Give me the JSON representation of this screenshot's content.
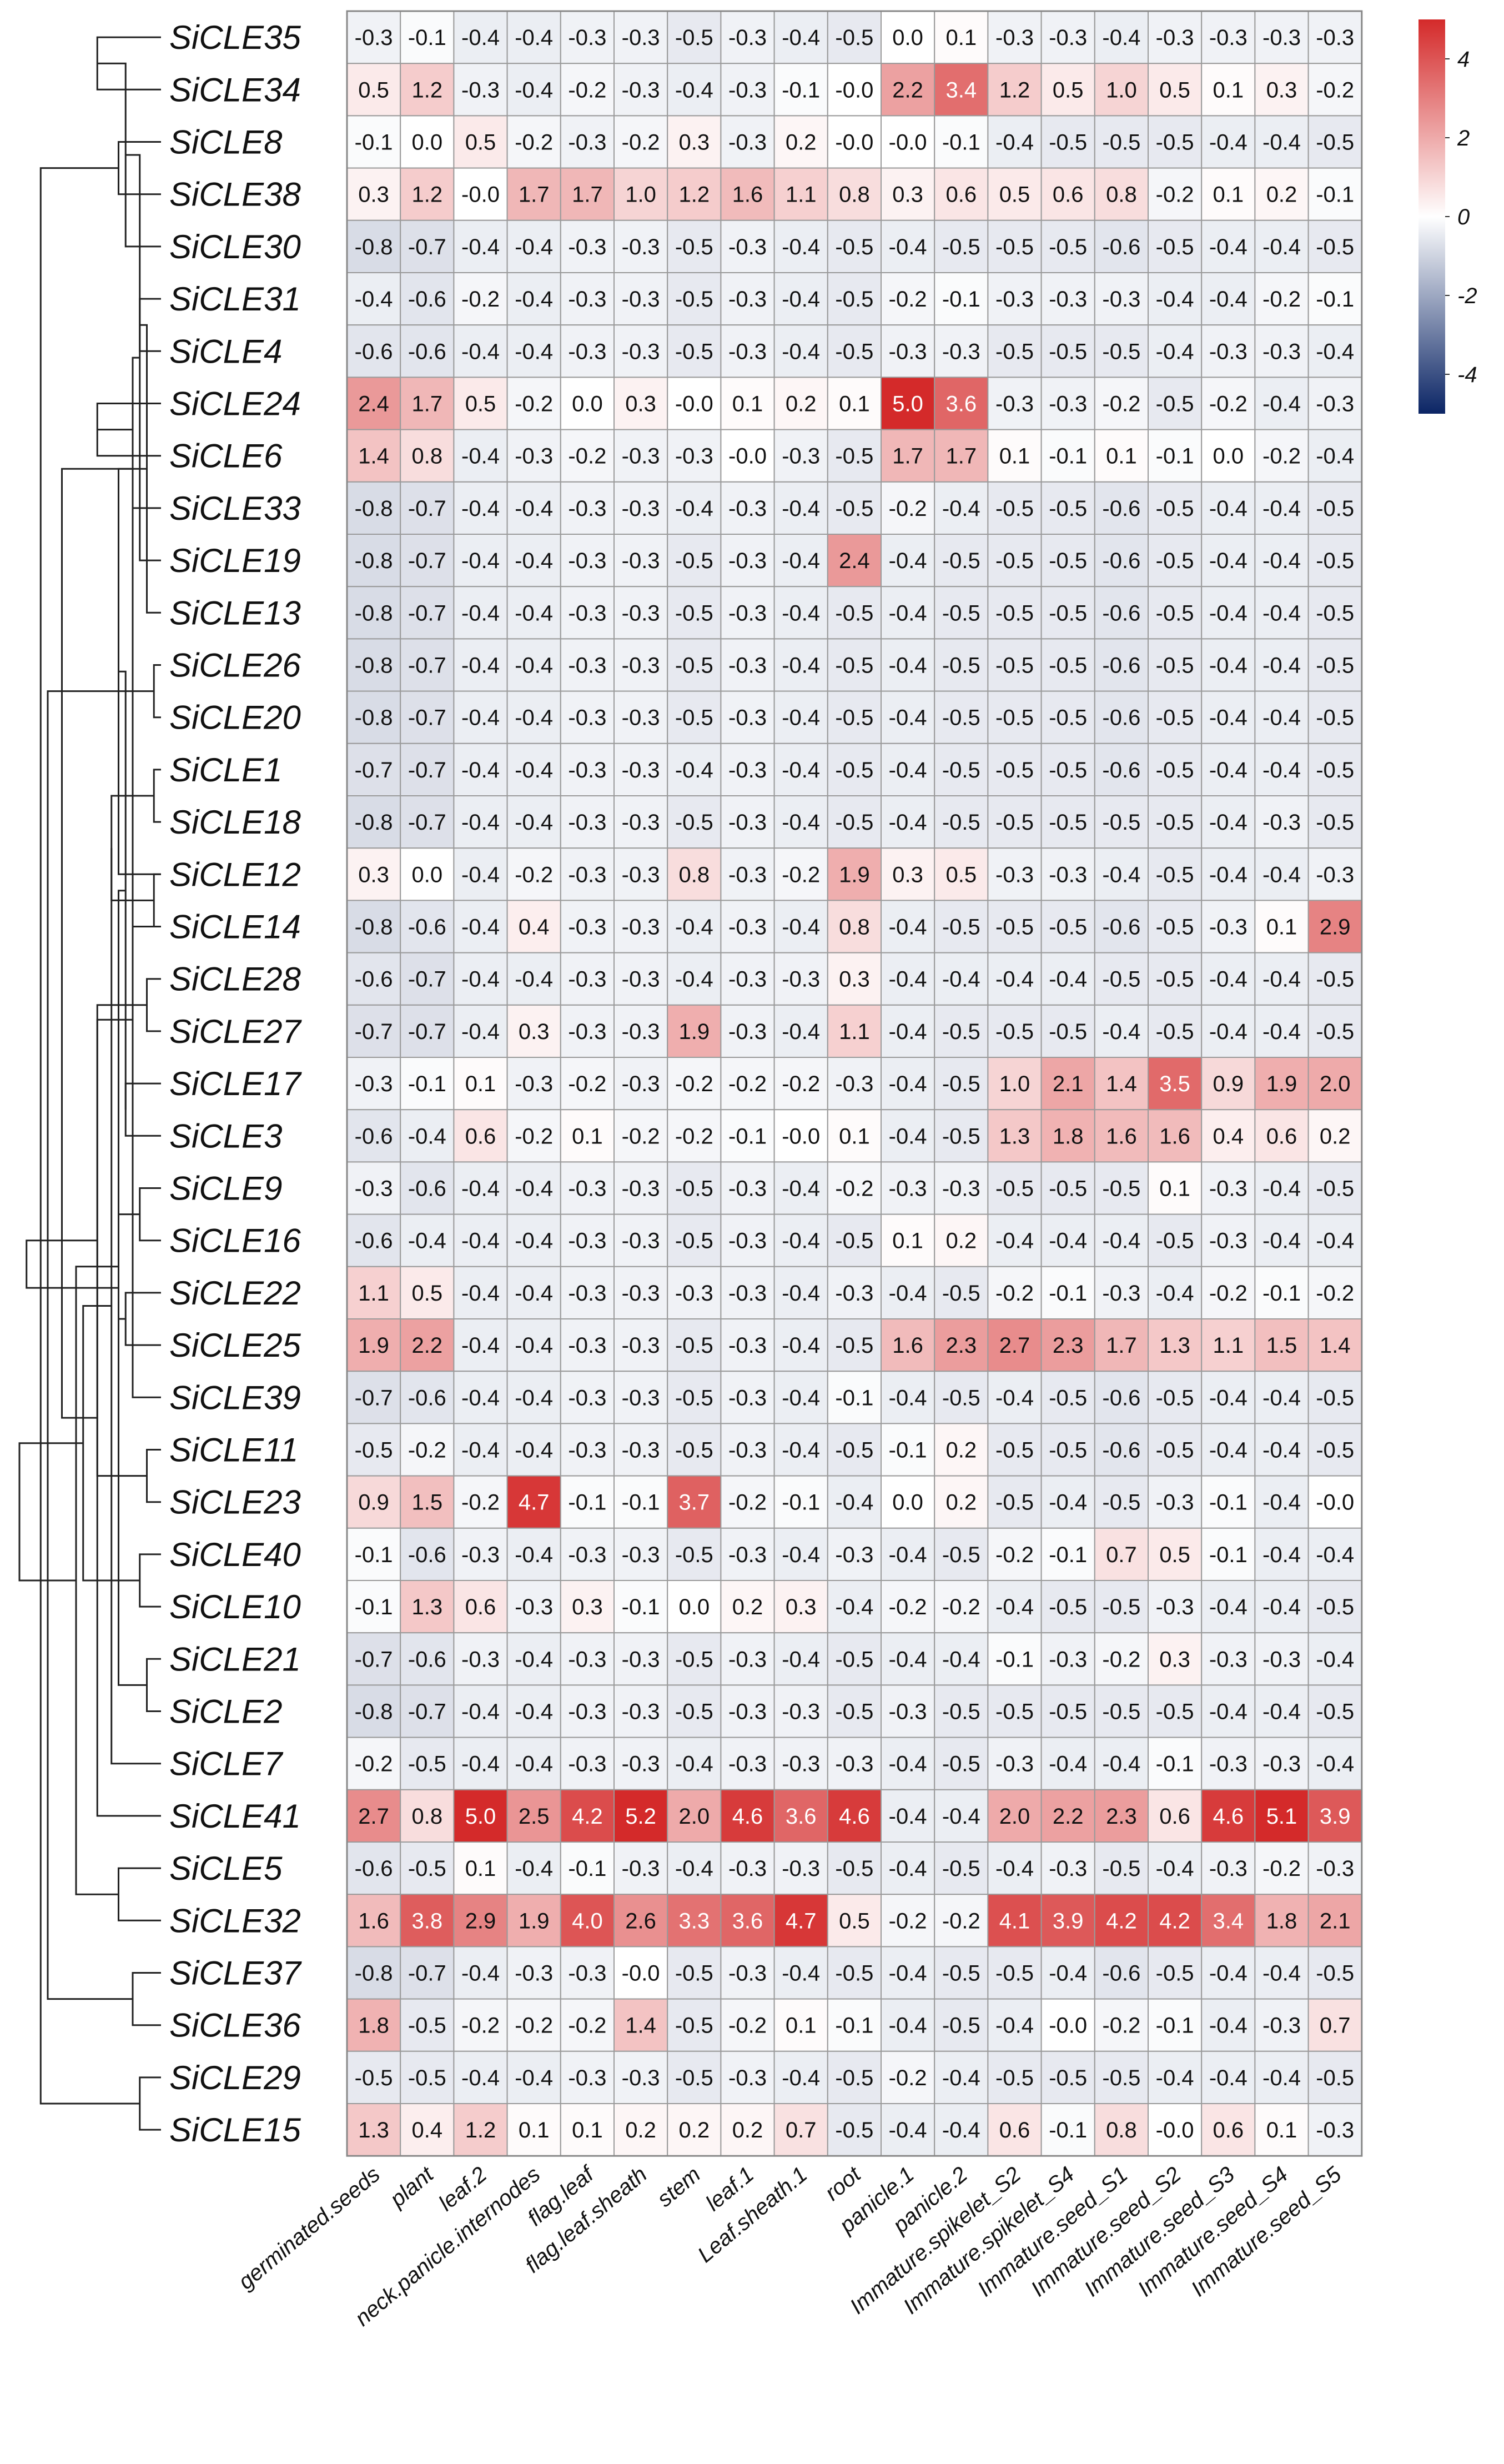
{
  "chart_data": {
    "type": "heatmap",
    "title": "",
    "rows": [
      "SiCLE35",
      "SiCLE34",
      "SiCLE8",
      "SiCLE38",
      "SiCLE30",
      "SiCLE31",
      "SiCLE4",
      "SiCLE24",
      "SiCLE6",
      "SiCLE33",
      "SiCLE19",
      "SiCLE13",
      "SiCLE26",
      "SiCLE20",
      "SiCLE1",
      "SiCLE18",
      "SiCLE12",
      "SiCLE14",
      "SiCLE28",
      "SiCLE27",
      "SiCLE17",
      "SiCLE3",
      "SiCLE9",
      "SiCLE16",
      "SiCLE22",
      "SiCLE25",
      "SiCLE39",
      "SiCLE11",
      "SiCLE23",
      "SiCLE40",
      "SiCLE10",
      "SiCLE21",
      "SiCLE2",
      "SiCLE7",
      "SiCLE41",
      "SiCLE5",
      "SiCLE32",
      "SiCLE37",
      "SiCLE36",
      "SiCLE29",
      "SiCLE15"
    ],
    "columns": [
      "germinated.seeds",
      "plant",
      "leaf.2",
      "neck.panicle.internodes",
      "flag.leaf",
      "flag.leaf.sheath",
      "stem",
      "leaf.1",
      "Leaf.sheath.1",
      "root",
      "panicle.1",
      "panicle.2",
      "Immature.spikelet_S2",
      "Immature.spikelet_S4",
      "Immature.seed_S1",
      "Immature.seed_S2",
      "Immature.seed_S3",
      "Immature.seed_S4",
      "Immature.seed_S5"
    ],
    "values": [
      [
        -0.3,
        -0.1,
        -0.4,
        -0.4,
        -0.3,
        -0.3,
        -0.5,
        -0.3,
        -0.4,
        -0.5,
        0.0,
        0.1,
        -0.3,
        -0.3,
        -0.4,
        -0.3,
        -0.3,
        -0.3,
        -0.3
      ],
      [
        0.5,
        1.2,
        -0.3,
        -0.4,
        -0.2,
        -0.3,
        -0.4,
        -0.3,
        -0.1,
        -0.0,
        2.2,
        3.4,
        1.2,
        0.5,
        1.0,
        0.5,
        0.1,
        0.3,
        -0.2
      ],
      [
        -0.1,
        0.0,
        0.5,
        -0.2,
        -0.3,
        -0.2,
        0.3,
        -0.3,
        0.2,
        -0.0,
        -0.0,
        -0.1,
        -0.4,
        -0.5,
        -0.5,
        -0.5,
        -0.4,
        -0.4,
        -0.5
      ],
      [
        0.3,
        1.2,
        -0.0,
        1.7,
        1.7,
        1.0,
        1.2,
        1.6,
        1.1,
        0.8,
        0.3,
        0.6,
        0.5,
        0.6,
        0.8,
        -0.2,
        0.1,
        0.2,
        -0.1
      ],
      [
        -0.8,
        -0.7,
        -0.4,
        -0.4,
        -0.3,
        -0.3,
        -0.5,
        -0.3,
        -0.4,
        -0.5,
        -0.4,
        -0.5,
        -0.5,
        -0.5,
        -0.6,
        -0.5,
        -0.4,
        -0.4,
        -0.5
      ],
      [
        -0.4,
        -0.6,
        -0.2,
        -0.4,
        -0.3,
        -0.3,
        -0.5,
        -0.3,
        -0.4,
        -0.5,
        -0.2,
        -0.1,
        -0.3,
        -0.3,
        -0.3,
        -0.4,
        -0.4,
        -0.2,
        -0.1
      ],
      [
        -0.6,
        -0.6,
        -0.4,
        -0.4,
        -0.3,
        -0.3,
        -0.5,
        -0.3,
        -0.4,
        -0.5,
        -0.3,
        -0.3,
        -0.5,
        -0.5,
        -0.5,
        -0.4,
        -0.3,
        -0.3,
        -0.4
      ],
      [
        2.4,
        1.7,
        0.5,
        -0.2,
        0.0,
        0.3,
        -0.0,
        0.1,
        0.2,
        0.1,
        5.0,
        3.6,
        -0.3,
        -0.3,
        -0.2,
        -0.5,
        -0.2,
        -0.4,
        -0.3
      ],
      [
        1.4,
        0.8,
        -0.4,
        -0.3,
        -0.2,
        -0.3,
        -0.3,
        -0.0,
        -0.3,
        -0.5,
        1.7,
        1.7,
        0.1,
        -0.1,
        0.1,
        -0.1,
        0.0,
        -0.2,
        -0.4
      ],
      [
        -0.8,
        -0.7,
        -0.4,
        -0.4,
        -0.3,
        -0.3,
        -0.4,
        -0.3,
        -0.4,
        -0.5,
        -0.2,
        -0.4,
        -0.5,
        -0.5,
        -0.6,
        -0.5,
        -0.4,
        -0.4,
        -0.5
      ],
      [
        -0.8,
        -0.7,
        -0.4,
        -0.4,
        -0.3,
        -0.3,
        -0.5,
        -0.3,
        -0.4,
        2.4,
        -0.4,
        -0.5,
        -0.5,
        -0.5,
        -0.6,
        -0.5,
        -0.4,
        -0.4,
        -0.5
      ],
      [
        -0.8,
        -0.7,
        -0.4,
        -0.4,
        -0.3,
        -0.3,
        -0.5,
        -0.3,
        -0.4,
        -0.5,
        -0.4,
        -0.5,
        -0.5,
        -0.5,
        -0.6,
        -0.5,
        -0.4,
        -0.4,
        -0.5
      ],
      [
        -0.8,
        -0.7,
        -0.4,
        -0.4,
        -0.3,
        -0.3,
        -0.5,
        -0.3,
        -0.4,
        -0.5,
        -0.4,
        -0.5,
        -0.5,
        -0.5,
        -0.6,
        -0.5,
        -0.4,
        -0.4,
        -0.5
      ],
      [
        -0.8,
        -0.7,
        -0.4,
        -0.4,
        -0.3,
        -0.3,
        -0.5,
        -0.3,
        -0.4,
        -0.5,
        -0.4,
        -0.5,
        -0.5,
        -0.5,
        -0.6,
        -0.5,
        -0.4,
        -0.4,
        -0.5
      ],
      [
        -0.7,
        -0.7,
        -0.4,
        -0.4,
        -0.3,
        -0.3,
        -0.4,
        -0.3,
        -0.4,
        -0.5,
        -0.4,
        -0.5,
        -0.5,
        -0.5,
        -0.6,
        -0.5,
        -0.4,
        -0.4,
        -0.5
      ],
      [
        -0.8,
        -0.7,
        -0.4,
        -0.4,
        -0.3,
        -0.3,
        -0.5,
        -0.3,
        -0.4,
        -0.5,
        -0.4,
        -0.5,
        -0.5,
        -0.5,
        -0.5,
        -0.5,
        -0.4,
        -0.3,
        -0.5
      ],
      [
        0.3,
        0.0,
        -0.4,
        -0.2,
        -0.3,
        -0.3,
        0.8,
        -0.3,
        -0.2,
        1.9,
        0.3,
        0.5,
        -0.3,
        -0.3,
        -0.4,
        -0.5,
        -0.4,
        -0.4,
        -0.3
      ],
      [
        -0.8,
        -0.6,
        -0.4,
        0.4,
        -0.3,
        -0.3,
        -0.4,
        -0.3,
        -0.4,
        0.8,
        -0.4,
        -0.5,
        -0.5,
        -0.5,
        -0.6,
        -0.5,
        -0.3,
        0.1,
        2.9
      ],
      [
        -0.6,
        -0.7,
        -0.4,
        -0.4,
        -0.3,
        -0.3,
        -0.4,
        -0.3,
        -0.3,
        0.3,
        -0.4,
        -0.4,
        -0.4,
        -0.4,
        -0.5,
        -0.5,
        -0.4,
        -0.4,
        -0.5
      ],
      [
        -0.7,
        -0.7,
        -0.4,
        0.3,
        -0.3,
        -0.3,
        1.9,
        -0.3,
        -0.4,
        1.1,
        -0.4,
        -0.5,
        -0.5,
        -0.5,
        -0.4,
        -0.5,
        -0.4,
        -0.4,
        -0.5
      ],
      [
        -0.3,
        -0.1,
        0.1,
        -0.3,
        -0.2,
        -0.3,
        -0.2,
        -0.2,
        -0.2,
        -0.3,
        -0.4,
        -0.5,
        1.0,
        2.1,
        1.4,
        3.5,
        0.9,
        1.9,
        2.0
      ],
      [
        -0.6,
        -0.4,
        0.6,
        -0.2,
        0.1,
        -0.2,
        -0.2,
        -0.1,
        -0.0,
        0.1,
        -0.4,
        -0.5,
        1.3,
        1.8,
        1.6,
        1.6,
        0.4,
        0.6,
        0.2
      ],
      [
        -0.3,
        -0.6,
        -0.4,
        -0.4,
        -0.3,
        -0.3,
        -0.5,
        -0.3,
        -0.4,
        -0.2,
        -0.3,
        -0.3,
        -0.5,
        -0.5,
        -0.5,
        0.1,
        -0.3,
        -0.4,
        -0.5
      ],
      [
        -0.6,
        -0.4,
        -0.4,
        -0.4,
        -0.3,
        -0.3,
        -0.5,
        -0.3,
        -0.4,
        -0.5,
        0.1,
        0.2,
        -0.4,
        -0.4,
        -0.4,
        -0.5,
        -0.3,
        -0.4,
        -0.4
      ],
      [
        1.1,
        0.5,
        -0.4,
        -0.4,
        -0.3,
        -0.3,
        -0.3,
        -0.3,
        -0.4,
        -0.3,
        -0.4,
        -0.5,
        -0.2,
        -0.1,
        -0.3,
        -0.4,
        -0.2,
        -0.1,
        -0.2
      ],
      [
        1.9,
        2.2,
        -0.4,
        -0.4,
        -0.3,
        -0.3,
        -0.5,
        -0.3,
        -0.4,
        -0.5,
        1.6,
        2.3,
        2.7,
        2.3,
        1.7,
        1.3,
        1.1,
        1.5,
        1.4
      ],
      [
        -0.7,
        -0.6,
        -0.4,
        -0.4,
        -0.3,
        -0.3,
        -0.5,
        -0.3,
        -0.4,
        -0.1,
        -0.4,
        -0.5,
        -0.4,
        -0.5,
        -0.6,
        -0.5,
        -0.4,
        -0.4,
        -0.5
      ],
      [
        -0.5,
        -0.2,
        -0.4,
        -0.4,
        -0.3,
        -0.3,
        -0.5,
        -0.3,
        -0.4,
        -0.5,
        -0.1,
        0.2,
        -0.5,
        -0.5,
        -0.6,
        -0.5,
        -0.4,
        -0.4,
        -0.5
      ],
      [
        0.9,
        1.5,
        -0.2,
        4.7,
        -0.1,
        -0.1,
        3.7,
        -0.2,
        -0.1,
        -0.4,
        0.0,
        0.2,
        -0.5,
        -0.4,
        -0.5,
        -0.3,
        -0.1,
        -0.4,
        -0.0
      ],
      [
        -0.1,
        -0.6,
        -0.3,
        -0.4,
        -0.3,
        -0.3,
        -0.5,
        -0.3,
        -0.4,
        -0.3,
        -0.4,
        -0.5,
        -0.2,
        -0.1,
        0.7,
        0.5,
        -0.1,
        -0.4,
        -0.4
      ],
      [
        -0.1,
        1.3,
        0.6,
        -0.3,
        0.3,
        -0.1,
        0.0,
        0.2,
        0.3,
        -0.4,
        -0.2,
        -0.2,
        -0.4,
        -0.5,
        -0.5,
        -0.3,
        -0.4,
        -0.4,
        -0.5
      ],
      [
        -0.7,
        -0.6,
        -0.3,
        -0.4,
        -0.3,
        -0.3,
        -0.5,
        -0.3,
        -0.4,
        -0.5,
        -0.4,
        -0.4,
        -0.1,
        -0.3,
        -0.2,
        0.3,
        -0.3,
        -0.3,
        -0.4
      ],
      [
        -0.8,
        -0.7,
        -0.4,
        -0.4,
        -0.3,
        -0.3,
        -0.5,
        -0.3,
        -0.3,
        -0.5,
        -0.3,
        -0.5,
        -0.5,
        -0.5,
        -0.5,
        -0.5,
        -0.4,
        -0.4,
        -0.5
      ],
      [
        -0.2,
        -0.5,
        -0.4,
        -0.4,
        -0.3,
        -0.3,
        -0.4,
        -0.3,
        -0.3,
        -0.3,
        -0.4,
        -0.5,
        -0.3,
        -0.4,
        -0.4,
        -0.1,
        -0.3,
        -0.3,
        -0.4
      ],
      [
        2.7,
        0.8,
        5.0,
        2.5,
        4.2,
        5.2,
        2.0,
        4.6,
        3.6,
        4.6,
        -0.4,
        -0.4,
        2.0,
        2.2,
        2.3,
        0.6,
        4.6,
        5.1,
        3.9
      ],
      [
        -0.6,
        -0.5,
        0.1,
        -0.4,
        -0.1,
        -0.3,
        -0.4,
        -0.3,
        -0.3,
        -0.5,
        -0.4,
        -0.5,
        -0.4,
        -0.3,
        -0.5,
        -0.4,
        -0.3,
        -0.2,
        -0.3
      ],
      [
        1.6,
        3.8,
        2.9,
        1.9,
        4.0,
        2.6,
        3.3,
        3.6,
        4.7,
        0.5,
        -0.2,
        -0.2,
        4.1,
        3.9,
        4.2,
        4.2,
        3.4,
        1.8,
        2.1
      ],
      [
        -0.8,
        -0.7,
        -0.4,
        -0.3,
        -0.3,
        -0.0,
        -0.5,
        -0.3,
        -0.4,
        -0.5,
        -0.4,
        -0.5,
        -0.5,
        -0.4,
        -0.6,
        -0.5,
        -0.4,
        -0.4,
        -0.5
      ],
      [
        1.8,
        -0.5,
        -0.2,
        -0.2,
        -0.2,
        1.4,
        -0.5,
        -0.2,
        0.1,
        -0.1,
        -0.4,
        -0.5,
        -0.4,
        -0.0,
        -0.2,
        -0.1,
        -0.4,
        -0.3,
        0.7
      ],
      [
        -0.5,
        -0.5,
        -0.4,
        -0.4,
        -0.3,
        -0.3,
        -0.5,
        -0.3,
        -0.4,
        -0.5,
        -0.2,
        -0.4,
        -0.5,
        -0.5,
        -0.5,
        -0.4,
        -0.4,
        -0.4,
        -0.5
      ],
      [
        1.3,
        0.4,
        1.2,
        0.1,
        0.1,
        0.2,
        0.2,
        0.2,
        0.7,
        -0.5,
        -0.4,
        -0.4,
        0.6,
        -0.1,
        0.8,
        -0.0,
        0.6,
        0.1,
        -0.3
      ]
    ],
    "color_scale": {
      "min": -5,
      "max": 5,
      "low_color": "#0b2565",
      "mid_color": "#ffffff",
      "high_color": "#d42a2a",
      "ticks": [
        4,
        2,
        0,
        -2,
        -4
      ]
    },
    "dendrogram": {
      "type": "row",
      "merges": [
        [
          0,
          1,
          0.45
        ],
        [
          2,
          3,
          0.3
        ],
        [
          5,
          6,
          0.15
        ],
        [
          4,
          "c0",
          0.25
        ],
        [
          7,
          8,
          0.45
        ],
        [
          12,
          13,
          0.05
        ],
        [
          11,
          "c2",
          0.1
        ],
        [
          10,
          "c3",
          0.15
        ],
        [
          9,
          "c4",
          0.2
        ],
        [
          14,
          15,
          0.05
        ],
        [
          16,
          17,
          0.05
        ],
        [
          18,
          19,
          0.1
        ],
        [
          17,
          "c7",
          0.2
        ],
        [
          16,
          "c8",
          0.3
        ],
        [
          20,
          21,
          0.25
        ],
        [
          22,
          23,
          0.15
        ],
        [
          24,
          25,
          0.25
        ],
        [
          "c9",
          "c10",
          0.35
        ],
        [
          27,
          28,
          0.1
        ],
        [
          26,
          "c12",
          0.2
        ],
        [
          29,
          30,
          0.15
        ],
        [
          "c13",
          "c14",
          0.25
        ],
        [
          31,
          32,
          0.1
        ],
        [
          "c15",
          "c16",
          0.3
        ],
        [
          33,
          "c17",
          0.35
        ],
        [
          35,
          36,
          0.3
        ],
        [
          34,
          "c19",
          0.45
        ],
        [
          37,
          38,
          0.2
        ],
        [
          39,
          40,
          0.15
        ],
        [
          "c21",
          "c22",
          0.3
        ],
        [
          "c11",
          "c18",
          0.45
        ],
        [
          "c24",
          "c20",
          0.55
        ],
        [
          "c25",
          "c23",
          0.6
        ],
        [
          "c6",
          "c26",
          0.7
        ],
        [
          "c5",
          "c27",
          0.8
        ],
        [
          "c1",
          "c28",
          0.85
        ],
        [
          "c29",
          "c30",
          0.95
        ],
        [
          "c31",
          "c32",
          1.0
        ]
      ]
    }
  }
}
